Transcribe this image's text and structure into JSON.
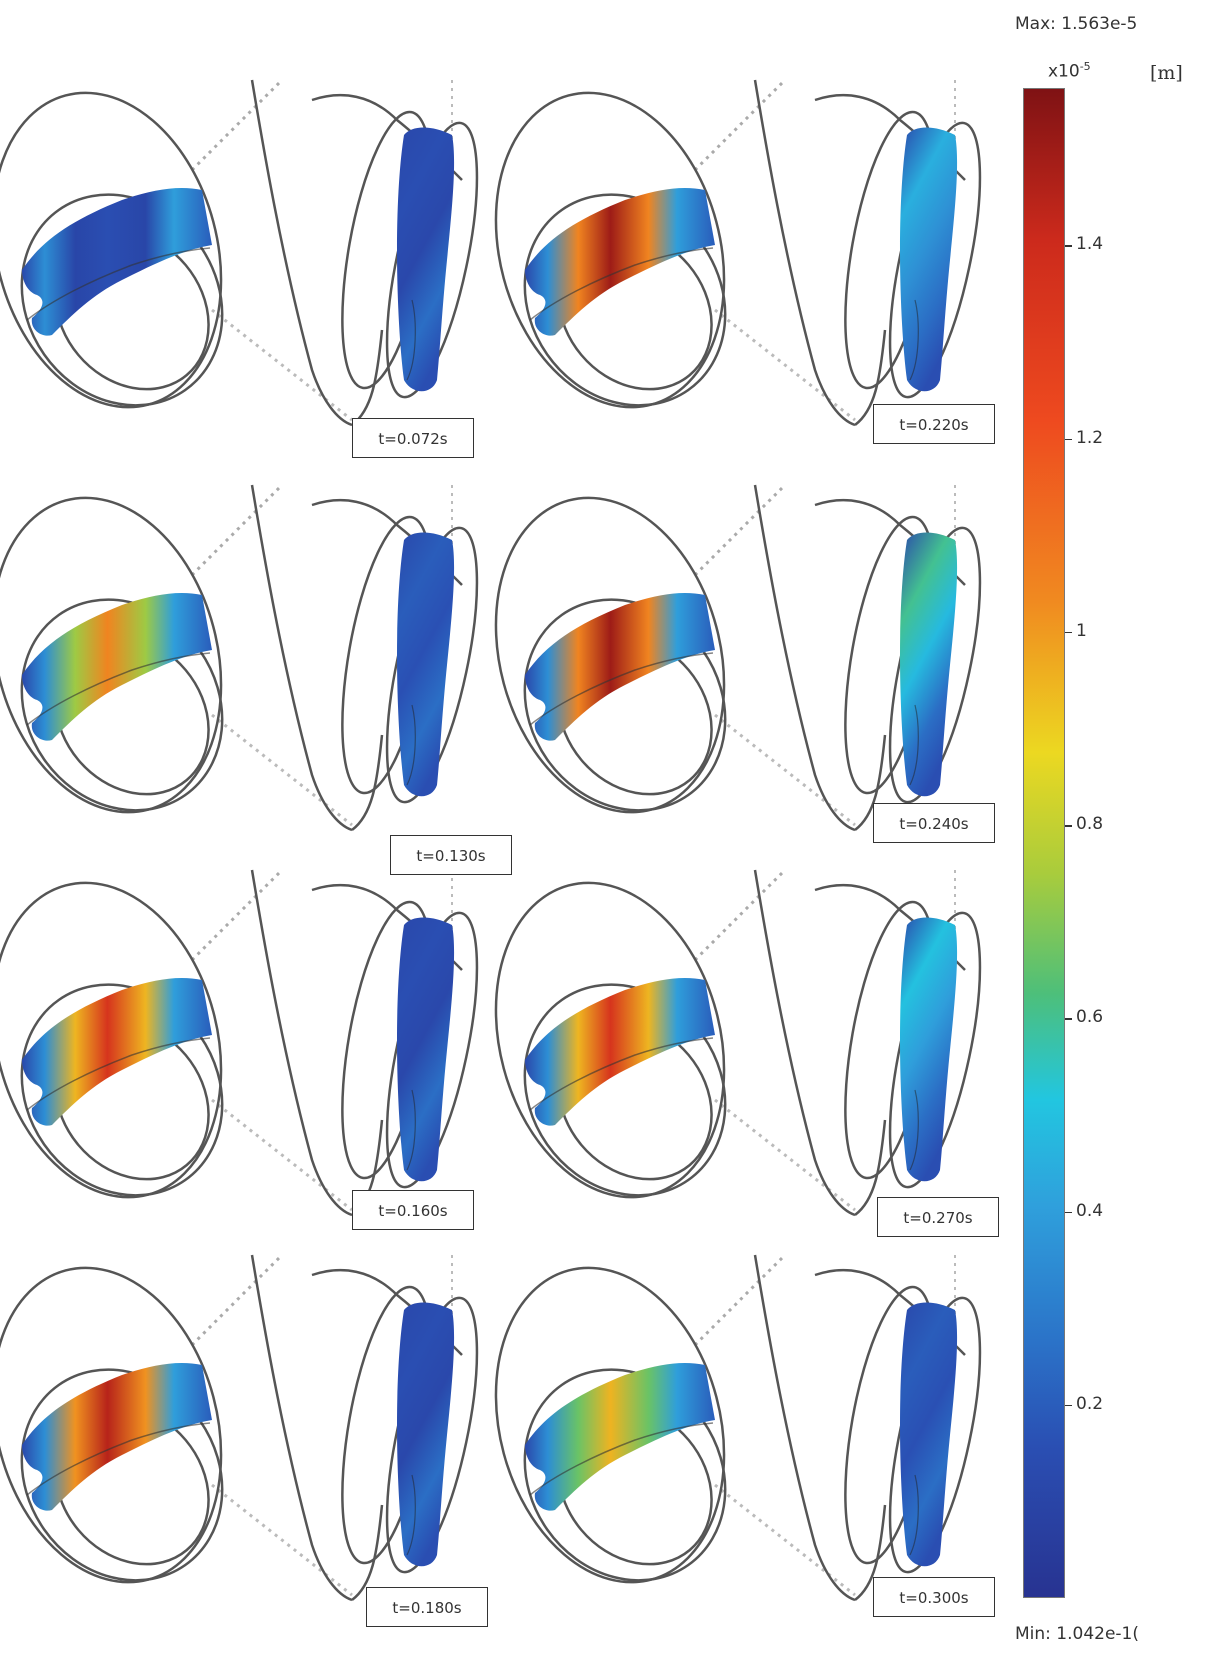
{
  "colorbar": {
    "max_label": "Max: 1.563e-5",
    "min_label": "Min: 1.042e-1(",
    "exponent_label": "x10",
    "exponent_power": "-5",
    "unit": "[m]",
    "ticks": [
      "1.4",
      "1.2",
      "1",
      "0.8",
      "0.6",
      "0.4",
      "0.2"
    ],
    "tick_values": [
      1.4,
      1.2,
      1.0,
      0.8,
      0.6,
      0.4,
      0.2
    ],
    "range": [
      1.042e-05,
      1.563
    ],
    "colormap": "jet"
  },
  "panels": [
    {
      "label": "t=0.072s",
      "left_intensity": 0.15,
      "right_intensity": 0.15
    },
    {
      "label": "t=0.220s",
      "left_intensity": 1.5,
      "right_intensity": 0.45
    },
    {
      "label": "t=0.130s",
      "left_intensity": 1.05,
      "right_intensity": 0.2
    },
    {
      "label": "t=0.240s",
      "left_intensity": 1.5,
      "right_intensity": 0.6
    },
    {
      "label": "t=0.160s",
      "left_intensity": 1.35,
      "right_intensity": 0.15
    },
    {
      "label": "t=0.270s",
      "left_intensity": 1.35,
      "right_intensity": 0.5
    },
    {
      "label": "t=0.180s",
      "left_intensity": 1.45,
      "right_intensity": 0.15
    },
    {
      "label": "t=0.300s",
      "left_intensity": 0.95,
      "right_intensity": 0.2
    }
  ],
  "colors": {
    "deep_blue": "#283391",
    "blue": "#2b5fc0",
    "cyan": "#2fc4ea",
    "green": "#7ac24f",
    "yellow": "#e9d92a",
    "orange": "#f2862a",
    "red": "#d8261f",
    "dark_red": "#8c1313",
    "outline": "#555555"
  }
}
